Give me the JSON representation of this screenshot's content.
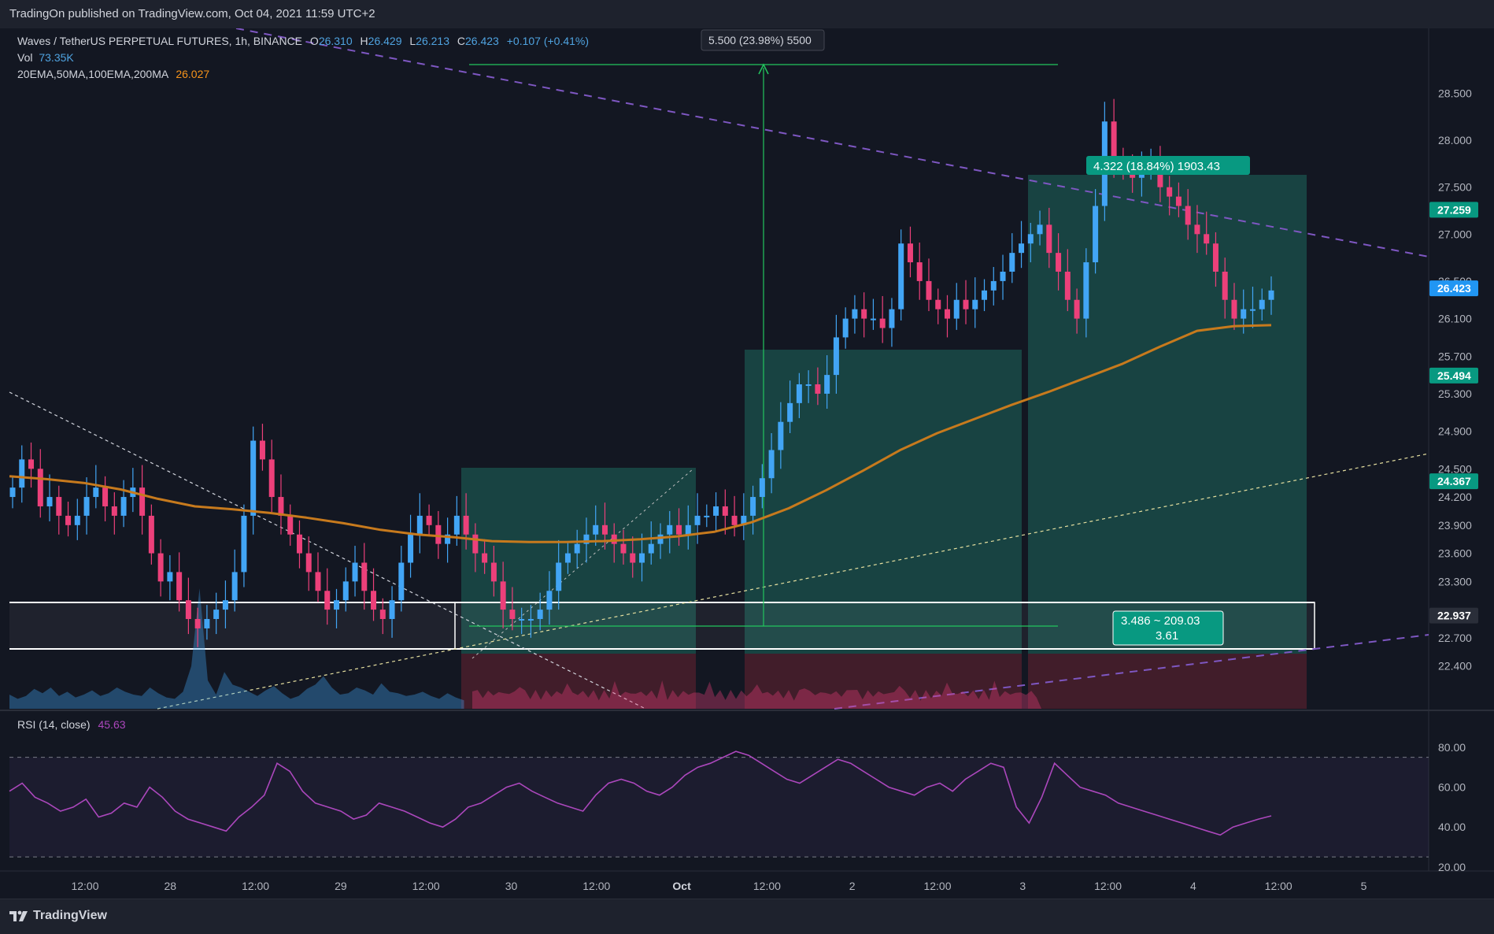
{
  "header": {
    "published": "TradingOn published on TradingView.com, Oct 04, 2021 11:59 UTC+2"
  },
  "legend": {
    "symbol": "Waves / TetherUS PERPETUAL FUTURES, 1h, BINANCE",
    "o_label": "O",
    "o_value": "26.310",
    "h_label": "H",
    "h_value": "26.429",
    "l_label": "L",
    "l_value": "26.213",
    "c_label": "C",
    "c_value": "26.423",
    "change": "+0.107 (+0.41%)",
    "vol_label": "Vol",
    "vol_value": "73.35K",
    "ma_label": "20EMA,50MA,100EMA,200MA",
    "ma_value": "26.027",
    "rsi_label": "RSI (14, close)",
    "rsi_value": "45.63"
  },
  "footer": {
    "brand": "TradingView"
  },
  "colors": {
    "background": "#131722",
    "up": "#42a5f5",
    "down": "#ec407a",
    "ma": "#c77a1d",
    "rsi": "#ab47bc",
    "green_box": "#1a4b48",
    "red_box": "#4a1f2b"
  },
  "chart_data": [
    {
      "type": "candlestick",
      "title": "Waves / TetherUS PERPETUAL FUTURES, 1h, BINANCE",
      "price_ticks": [
        "28.500",
        "28.000",
        "27.500",
        "27.000",
        "26.500",
        "26.100",
        "25.700",
        "25.300",
        "24.900",
        "24.500",
        "24.200",
        "23.900",
        "23.600",
        "23.300",
        "22.900",
        "22.700",
        "22.400"
      ],
      "price_tick_values": [
        28.5,
        28.0,
        27.5,
        27.0,
        26.5,
        26.1,
        25.7,
        25.3,
        24.9,
        24.5,
        24.2,
        23.9,
        23.6,
        23.3,
        22.9,
        22.7,
        22.4
      ],
      "price_labels": [
        {
          "text": "27.259",
          "value": 27.259,
          "color": "#089981"
        },
        {
          "text": "26.423",
          "value": 26.423,
          "color": "#2196f3"
        },
        {
          "text": "25.494",
          "value": 25.494,
          "color": "#089981"
        },
        {
          "text": "24.367",
          "value": 24.367,
          "color": "#089981"
        },
        {
          "text": "22.937",
          "value": 22.937,
          "color": "#2a2e39"
        }
      ],
      "time_ticks": [
        "12:00",
        "28",
        "12:00",
        "29",
        "12:00",
        "30",
        "12:00",
        "Oct",
        "12:00",
        "2",
        "12:00",
        "3",
        "12:00",
        "4",
        "12:00",
        "5"
      ],
      "time_tick_bold": [
        false,
        false,
        false,
        false,
        false,
        false,
        false,
        true,
        false,
        false,
        false,
        false,
        false,
        false,
        false,
        false
      ],
      "annotations": [
        {
          "text": "5.500 (23.98%) 5500",
          "style": "dark"
        },
        {
          "text": "4.322 (18.84%) 1903.43",
          "style": "teal"
        },
        {
          "text": "3.486 ~ 209.03",
          "style": "teal"
        },
        {
          "text": "3.61",
          "style": "teal"
        }
      ],
      "close_series": [
        24.3,
        24.6,
        24.5,
        24.1,
        24.2,
        24.0,
        23.9,
        24.0,
        24.2,
        24.3,
        24.1,
        24.0,
        24.2,
        24.3,
        24.0,
        23.6,
        23.3,
        23.4,
        23.1,
        22.9,
        22.8,
        22.9,
        23.0,
        23.1,
        23.4,
        24.0,
        24.8,
        24.6,
        24.2,
        24.0,
        23.8,
        23.6,
        23.4,
        23.2,
        23.0,
        23.1,
        23.3,
        23.5,
        23.2,
        23.0,
        22.9,
        23.1,
        23.5,
        23.8,
        24.0,
        23.9,
        23.7,
        23.8,
        24.0,
        23.8,
        23.6,
        23.5,
        23.3,
        23.0,
        22.9,
        22.9,
        22.9,
        23.0,
        23.2,
        23.5,
        23.6,
        23.7,
        23.8,
        23.9,
        23.8,
        23.7,
        23.6,
        23.5,
        23.6,
        23.7,
        23.8,
        23.9,
        23.8,
        23.9,
        24.0,
        24.0,
        24.1,
        24.0,
        23.9,
        24.0,
        24.2,
        24.4,
        24.7,
        25.0,
        25.2,
        25.4,
        25.4,
        25.3,
        25.5,
        25.9,
        26.1,
        26.2,
        26.1,
        26.1,
        26.0,
        26.2,
        26.9,
        26.7,
        26.5,
        26.3,
        26.2,
        26.1,
        26.3,
        26.2,
        26.3,
        26.4,
        26.5,
        26.6,
        26.8,
        26.9,
        27.0,
        27.1,
        26.8,
        26.6,
        26.3,
        26.1,
        26.7,
        27.3,
        28.2,
        27.8,
        27.7,
        27.6,
        27.7,
        27.7,
        27.5,
        27.4,
        27.3,
        27.1,
        27.0,
        26.9,
        26.6,
        26.3,
        26.1,
        26.2,
        26.2,
        26.3,
        26.4
      ],
      "ma_series": [
        {
          "name": "20EMA,50MA,100EMA,200MA",
          "values": [
            24.42,
            24.39,
            24.35,
            24.28,
            24.18,
            24.1,
            24.07,
            24.03,
            23.98,
            23.92,
            23.85,
            23.8,
            23.77,
            23.73,
            23.72,
            23.72,
            23.73,
            23.75,
            23.78,
            23.83,
            23.93,
            24.08,
            24.27,
            24.48,
            24.7,
            24.88,
            25.03,
            25.18,
            25.32,
            25.47,
            25.62,
            25.8,
            25.97,
            26.02,
            26.03
          ]
        }
      ]
    },
    {
      "type": "line",
      "title": "RSI (14, close)",
      "y_ticks": [
        "80.00",
        "60.00",
        "40.00",
        "20.00"
      ],
      "y_tick_values": [
        80,
        60,
        40,
        20
      ],
      "bands": [
        75,
        25
      ],
      "ylim": [
        20,
        85
      ],
      "series": [
        {
          "name": "RSI (14, close)",
          "values": [
            58,
            62,
            55,
            52,
            48,
            50,
            54,
            45,
            47,
            52,
            50,
            60,
            55,
            48,
            44,
            42,
            40,
            38,
            45,
            50,
            56,
            72,
            68,
            58,
            52,
            50,
            48,
            44,
            46,
            52,
            50,
            48,
            45,
            42,
            40,
            44,
            50,
            52,
            56,
            60,
            62,
            58,
            55,
            52,
            50,
            48,
            56,
            62,
            64,
            62,
            58,
            56,
            60,
            66,
            70,
            72,
            75,
            78,
            76,
            72,
            68,
            64,
            62,
            66,
            70,
            74,
            72,
            68,
            64,
            60,
            58,
            56,
            60,
            62,
            58,
            64,
            68,
            72,
            70,
            50,
            42,
            55,
            72,
            66,
            60,
            58,
            56,
            52,
            50,
            48,
            46,
            44,
            42,
            40,
            38,
            36,
            40,
            42,
            44,
            45.63
          ]
        }
      ]
    }
  ]
}
